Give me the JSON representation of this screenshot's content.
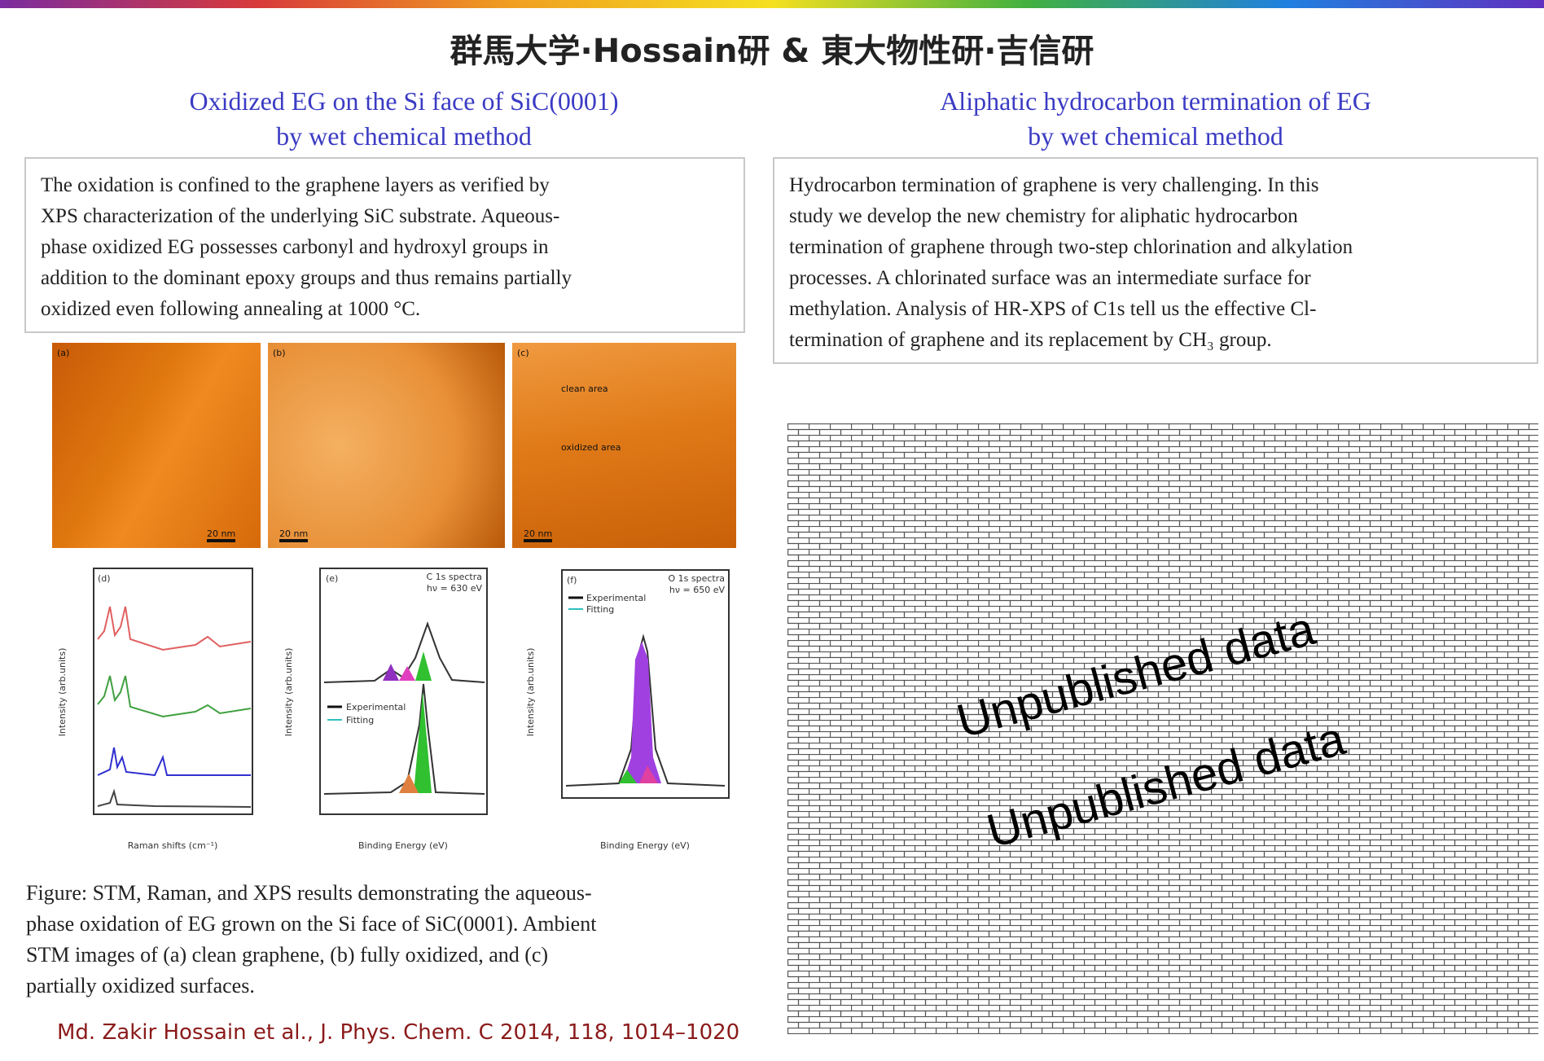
{
  "header": {
    "title": "群馬大学·Hossain研 & 東大物性研·吉信研"
  },
  "left": {
    "heading": [
      "Oxidized EG on the Si face of SiC(0001)",
      "by wet chemical method"
    ],
    "body": [
      "The oxidation is confined to the graphene layers as verified by",
      "XPS characterization of the underlying SiC substrate. Aqueous-",
      "phase oxidized EG possesses carbonyl and hydroxyl groups in",
      "addition to the dominant epoxy groups and thus remains partially",
      "oxidized even following annealing at 1000 °C."
    ],
    "figure": {
      "panels": [
        "(a)",
        "(b)",
        "(c)",
        "(d)",
        "(e)",
        "(f)"
      ],
      "scale_bars": [
        "20 nm",
        "20 nm",
        "20 nm"
      ],
      "annotations": [
        "clean area",
        "oxidized area"
      ],
      "plots": [
        {
          "x_label": "Raman shifts (cm⁻¹)",
          "y_label": "Intensity (arb.units)"
        },
        {
          "x_label": "Binding Energy (eV)",
          "y_label": "Intensity (arb.units)",
          "note": [
            "C 1s spectra",
            "hν = 630 eV"
          ],
          "legend": [
            "Experimental",
            "Fitting"
          ]
        },
        {
          "x_label": "Binding Energy (eV)",
          "y_label": "Intensity (arb.units)",
          "note": [
            "O 1s spectra",
            "hν = 650 eV"
          ],
          "legend": [
            "Experimental",
            "Fitting"
          ]
        }
      ]
    },
    "caption": [
      "Figure: STM, Raman, and XPS results demonstrating the aqueous-",
      "phase oxidation of EG grown on the Si face of SiC(0001). Ambient",
      "STM images of (a) clean graphene, (b) fully oxidized, and (c)",
      "partially oxidized surfaces."
    ],
    "citation": "Md. Zakir Hossain et al., J. Phys. Chem. C 2014, 118, 1014–1020"
  },
  "right": {
    "heading": [
      "Aliphatic hydrocarbon termination of EG",
      "by wet chemical method"
    ],
    "body": [
      "Hydrocarbon termination of graphene is very challenging. In this",
      "study we develop the new chemistry for aliphatic hydrocarbon",
      "termination of graphene through two-step chlorination and alkylation",
      "processes. A chlorinated surface was an intermediate surface for",
      "methylation. Analysis of HR-XPS of C1s tell us the effective Cl-",
      "termination of graphene and its replacement by CH₃ group."
    ],
    "watermark": [
      "Unpublished data",
      "Unpublished data"
    ]
  }
}
